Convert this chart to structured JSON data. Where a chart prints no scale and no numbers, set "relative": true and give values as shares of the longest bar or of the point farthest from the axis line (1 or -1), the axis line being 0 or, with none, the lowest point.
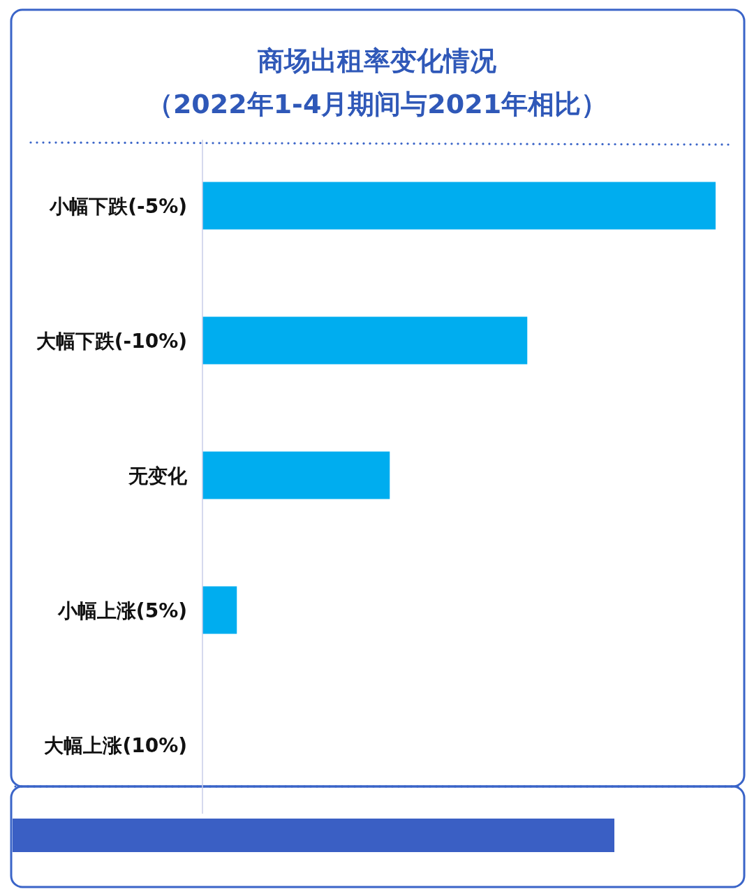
{
  "chart_data": {
    "type": "bar",
    "orientation": "horizontal",
    "relative": true,
    "title": "商场出租率变化情况",
    "subtitle": "（2022年1-4月期间与2021年相比）",
    "categories": [
      "小幅下跌(-5%)",
      "大幅下跌(-10%)",
      "无变化",
      "小幅上涨(5%)",
      "大幅上涨(10%)"
    ],
    "values": [
      1,
      0.633,
      0.365,
      0.067,
      0
    ],
    "color": "#00adef"
  }
}
